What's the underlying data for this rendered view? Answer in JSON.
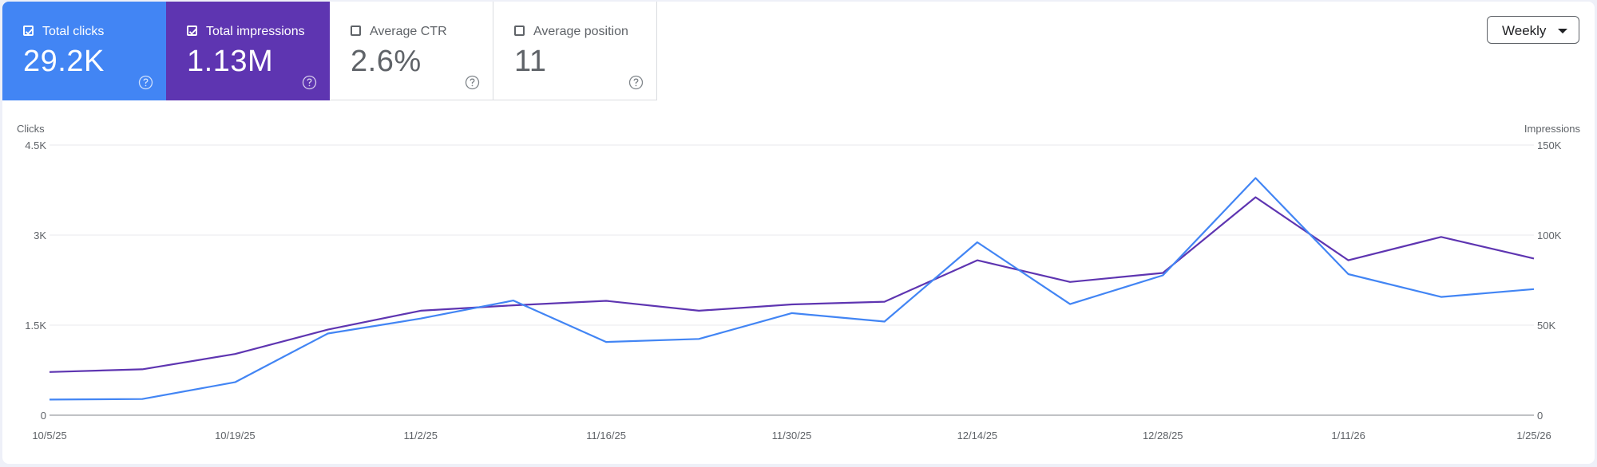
{
  "metrics": [
    {
      "label": "Total clicks",
      "value": "29.2K",
      "checked": true
    },
    {
      "label": "Total impressions",
      "value": "1.13M",
      "checked": true
    },
    {
      "label": "Average CTR",
      "value": "2.6%",
      "checked": false
    },
    {
      "label": "Average position",
      "value": "11",
      "checked": false
    }
  ],
  "period_select": {
    "label": "Weekly"
  },
  "colors": {
    "clicks": "#4285f4",
    "impressions": "#5e35b1",
    "grid": "#e8eaed",
    "axis": "#80868b"
  },
  "icons": {
    "checkbox": "checkbox-icon",
    "help": "help-circle-icon",
    "dropdown": "chevron-down-icon"
  },
  "chart_data": {
    "type": "line",
    "left_axis_title": "Clicks",
    "right_axis_title": "Impressions",
    "left_ticks": [
      "0",
      "1.5K",
      "3K",
      "4.5K"
    ],
    "right_ticks": [
      "0",
      "50K",
      "100K",
      "150K"
    ],
    "ylim_left": [
      0,
      4500
    ],
    "ylim_right": [
      0,
      150000
    ],
    "x_tick_labels": [
      "10/5/25",
      "10/19/25",
      "11/2/25",
      "11/16/25",
      "11/30/25",
      "12/14/25",
      "12/28/25",
      "1/11/26",
      "1/25/26"
    ],
    "x_tick_indices": [
      0,
      2,
      4,
      6,
      8,
      10,
      12,
      14,
      16
    ],
    "grid": true,
    "series": [
      {
        "name": "Total clicks",
        "axis": "left",
        "values": [
          260,
          270,
          550,
          1360,
          1610,
          1910,
          1220,
          1270,
          1700,
          1560,
          2880,
          1850,
          2330,
          3950,
          2350,
          1970,
          2100
        ]
      },
      {
        "name": "Total impressions",
        "axis": "right",
        "values": [
          24000,
          25500,
          34000,
          47500,
          58000,
          61000,
          63500,
          58000,
          61500,
          63000,
          86000,
          74000,
          79000,
          121000,
          86000,
          99000,
          87000
        ]
      }
    ]
  }
}
